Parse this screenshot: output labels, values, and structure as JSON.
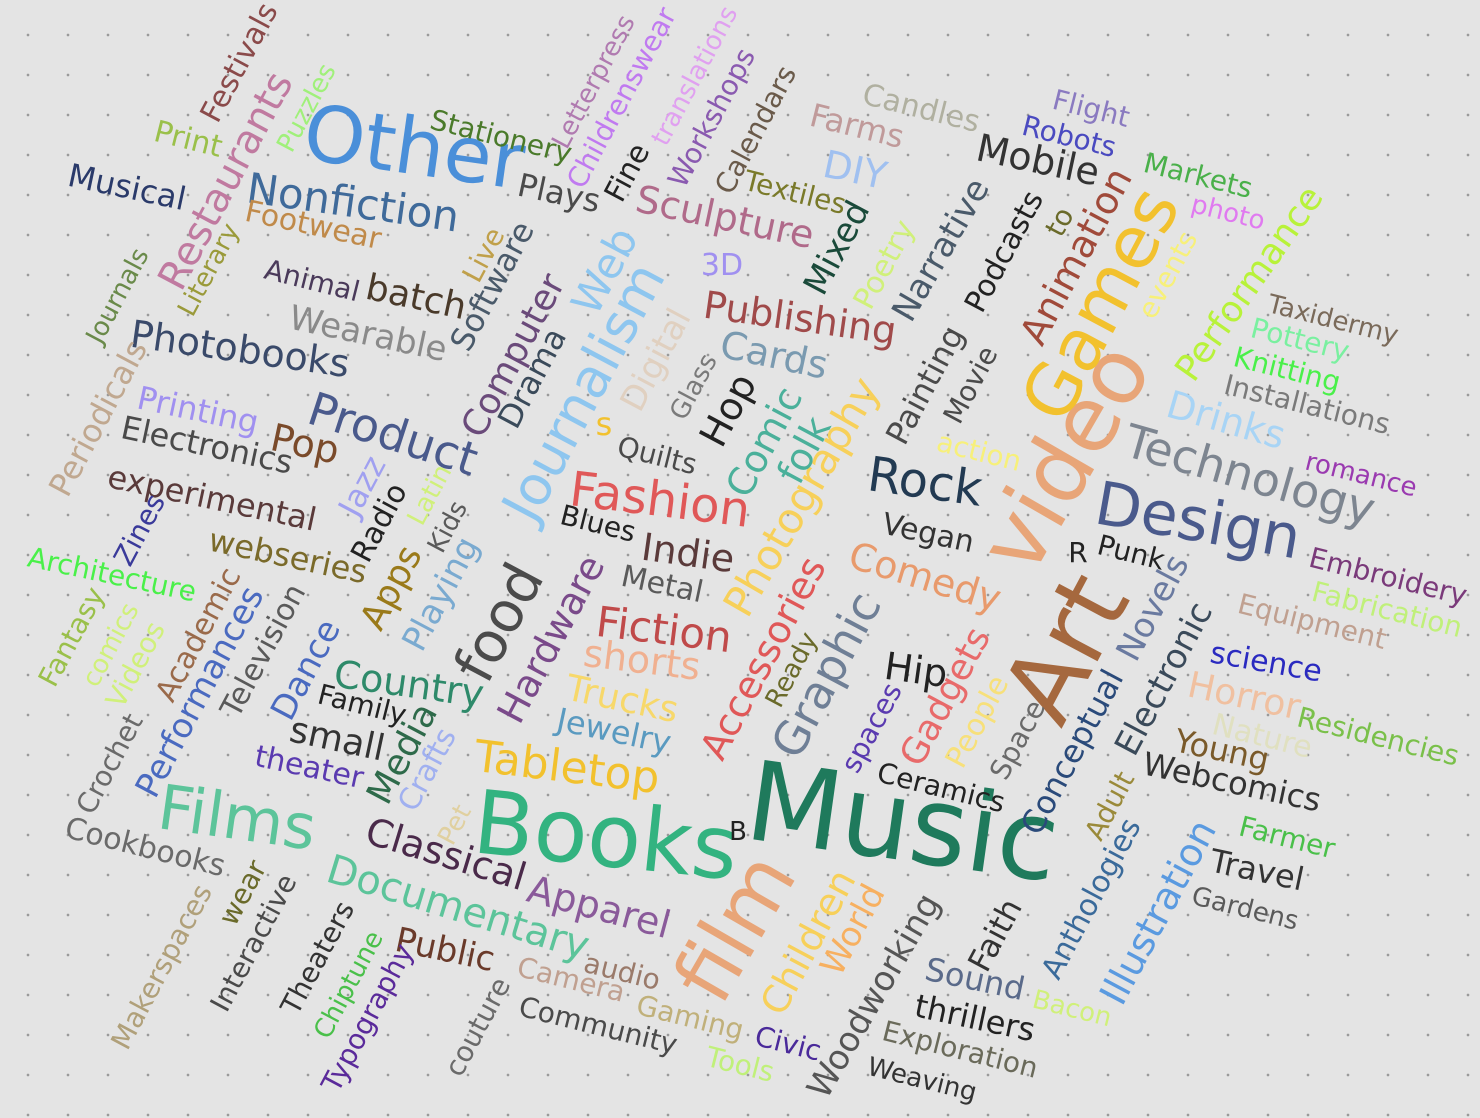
{
  "words": [
    {
      "text": "Music",
      "color": "#1f7a5c"
    },
    {
      "text": "Books",
      "color": "#33b380"
    },
    {
      "text": "Art",
      "color": "#a5683e"
    },
    {
      "text": "video",
      "color": "#e8a578"
    },
    {
      "text": "film",
      "color": "#e8a578"
    },
    {
      "text": "Other",
      "color": "#4a8fd9"
    },
    {
      "text": "Games",
      "color": "#f2c12e"
    },
    {
      "text": "Design",
      "color": "#4a5a8c"
    },
    {
      "text": "Films",
      "color": "#5cc49a"
    },
    {
      "text": "food",
      "color": "#4b4b4b"
    },
    {
      "text": "Journalism",
      "color": "#8ec6ef"
    },
    {
      "text": "Technology",
      "color": "#7d8590"
    },
    {
      "text": "Tabletop",
      "color": "#f2c12e"
    },
    {
      "text": "Fashion",
      "color": "#e05858"
    },
    {
      "text": "Photography",
      "color": "#f7d05a"
    },
    {
      "text": "Graphic",
      "color": "#6f7f96"
    },
    {
      "text": "Rock",
      "color": "#223a52"
    },
    {
      "text": "Product",
      "color": "#4a5a8c"
    },
    {
      "text": "Documentary",
      "color": "#5cc49a"
    },
    {
      "text": "Comedy",
      "color": "#e89a6c"
    },
    {
      "text": "Accessories",
      "color": "#e05858"
    },
    {
      "text": "Hardware",
      "color": "#7a4a8a"
    },
    {
      "text": "Fiction",
      "color": "#c04a4a"
    },
    {
      "text": "Country",
      "color": "#2e8a6a"
    },
    {
      "text": "Animation",
      "color": "#a04a3a"
    },
    {
      "text": "Photobooks",
      "color": "#3a4a6a"
    },
    {
      "text": "Nonfiction",
      "color": "#3f6a9a"
    },
    {
      "text": "Publishing",
      "color": "#a04a4a"
    },
    {
      "text": "Apparel",
      "color": "#8a5a9a"
    },
    {
      "text": "Restaurants",
      "color": "#c07aa0"
    },
    {
      "text": "Classical",
      "color": "#4a2a4a"
    },
    {
      "text": "Sculpture",
      "color": "#b06a8a"
    },
    {
      "text": "Drinks",
      "color": "#a8d4f5"
    },
    {
      "text": "Mobile",
      "color": "#333333"
    },
    {
      "text": "Children",
      "color": "#f7d05a"
    },
    {
      "text": "Performance",
      "color": "#b8f23a"
    },
    {
      "text": "Illustration",
      "color": "#5a9ae0"
    },
    {
      "text": "Web",
      "color": "#8ec6ef"
    },
    {
      "text": "Computer",
      "color": "#6a4a7a"
    },
    {
      "text": "Woodworking",
      "color": "#555555"
    },
    {
      "text": "Narrative",
      "color": "#4a5a6a"
    },
    {
      "text": "Novels",
      "color": "#6a7aa0"
    },
    {
      "text": "Electronic",
      "color": "#3a4a5a"
    },
    {
      "text": "Webcomics",
      "color": "#333333"
    },
    {
      "text": "Performances",
      "color": "#4a6ac0"
    },
    {
      "text": "Media",
      "color": "#2e6a4a"
    },
    {
      "text": "shorts",
      "color": "#f0b090"
    },
    {
      "text": "Comic",
      "color": "#4ab09a"
    },
    {
      "text": "Gadgets",
      "color": "#e86a6a"
    },
    {
      "text": "Conceptual",
      "color": "#2a4a7a"
    },
    {
      "text": "Anthologies",
      "color": "#3a6a9a"
    },
    {
      "text": "Painting",
      "color": "#4a4a4a"
    },
    {
      "text": "Sound",
      "color": "#5a6a8a"
    },
    {
      "text": "Public",
      "color": "#6a3a2a"
    },
    {
      "text": "Software",
      "color": "#4a5a6a"
    },
    {
      "text": "Drama",
      "color": "#3a4a5a"
    },
    {
      "text": "Equipment",
      "color": "#c0a090"
    },
    {
      "text": "webseries",
      "color": "#7a6a2a"
    },
    {
      "text": "experimental",
      "color": "#5a3a3a"
    },
    {
      "text": "Wearable",
      "color": "#8a8a8a"
    },
    {
      "text": "Hip",
      "color": "#222222"
    },
    {
      "text": "Indie",
      "color": "#5a3a3a"
    },
    {
      "text": "Hop",
      "color": "#222222"
    },
    {
      "text": "Horror",
      "color": "#f0c0a0"
    },
    {
      "text": "Trucks",
      "color": "#f7d86a"
    },
    {
      "text": "Jewelry",
      "color": "#5a9ac0"
    },
    {
      "text": "Periodicals",
      "color": "#c0a890"
    },
    {
      "text": "Digital",
      "color": "#e0d0c0"
    },
    {
      "text": "Playing",
      "color": "#7aaad0"
    },
    {
      "text": "Dance",
      "color": "#4a6ac0"
    },
    {
      "text": "small",
      "color": "#333333"
    },
    {
      "text": "World",
      "color": "#f7b060"
    },
    {
      "text": "Travel",
      "color": "#333333"
    },
    {
      "text": "Residencies",
      "color": "#7ac04a"
    },
    {
      "text": "Cookbooks",
      "color": "#6a6a6a"
    },
    {
      "text": "Musical",
      "color": "#2a3a6a"
    },
    {
      "text": "Electronics",
      "color": "#4a4a4a"
    },
    {
      "text": "Printing",
      "color": "#a090f0"
    },
    {
      "text": "Pop",
      "color": "#7a4a2a"
    },
    {
      "text": "folk",
      "color": "#4ab09a"
    },
    {
      "text": "Cards",
      "color": "#7a9ab0"
    },
    {
      "text": "Installations",
      "color": "#7a7a7a"
    },
    {
      "text": "Knitting",
      "color": "#4af04a"
    },
    {
      "text": "Taxidermy",
      "color": "#7a6a5a"
    },
    {
      "text": "Pottery",
      "color": "#7af0a0"
    },
    {
      "text": "Embroidery",
      "color": "#7a3a7a"
    },
    {
      "text": "Fabrication",
      "color": "#c0f07a"
    },
    {
      "text": "science",
      "color": "#2a2ac0"
    },
    {
      "text": "Young",
      "color": "#7a5a2a"
    },
    {
      "text": "Nature",
      "color": "#e0e0c0"
    },
    {
      "text": "Farmer",
      "color": "#4ac04a"
    },
    {
      "text": "Gardens",
      "color": "#5a5a5a"
    },
    {
      "text": "Adult",
      "color": "#9a8a3a"
    },
    {
      "text": "Faith",
      "color": "#333333"
    },
    {
      "text": "thrillers",
      "color": "#222222"
    },
    {
      "text": "Exploration",
      "color": "#6a6a5a"
    },
    {
      "text": "Weaving",
      "color": "#333333"
    },
    {
      "text": "Bacon",
      "color": "#d0f07a"
    },
    {
      "text": "Civic",
      "color": "#4a2a9a"
    },
    {
      "text": "Tools",
      "color": "#c0f07a"
    },
    {
      "text": "Gaming",
      "color": "#c0b07a"
    },
    {
      "text": "Community",
      "color": "#4a4a4a"
    },
    {
      "text": "audio",
      "color": "#9a7a6a"
    },
    {
      "text": "Camera",
      "color": "#c0a090"
    },
    {
      "text": "couture",
      "color": "#6a6a6a"
    },
    {
      "text": "Typography",
      "color": "#5a2a9a"
    },
    {
      "text": "Chiptune",
      "color": "#4ac04a"
    },
    {
      "text": "Theaters",
      "color": "#333333"
    },
    {
      "text": "Interactive",
      "color": "#4a4a4a"
    },
    {
      "text": "Makerspaces",
      "color": "#b0a07a"
    },
    {
      "text": "wear",
      "color": "#6a6a2a"
    },
    {
      "text": "Pet",
      "color": "#e0d0a0"
    },
    {
      "text": "Crafts",
      "color": "#a0b0f0"
    },
    {
      "text": "theater",
      "color": "#5a3ab0"
    },
    {
      "text": "Family",
      "color": "#222222"
    },
    {
      "text": "Television",
      "color": "#5a5a5a"
    },
    {
      "text": "Academic",
      "color": "#9a6a4a"
    },
    {
      "text": "Crochet",
      "color": "#6a6a6a"
    },
    {
      "text": "Videos",
      "color": "#d0f07a"
    },
    {
      "text": "comics",
      "color": "#d0f07a"
    },
    {
      "text": "Fantasy",
      "color": "#9ac04a"
    },
    {
      "text": "Architecture",
      "color": "#4af04a"
    },
    {
      "text": "Zines",
      "color": "#3a3a9a"
    },
    {
      "text": "Jazz",
      "color": "#a0a0f0"
    },
    {
      "text": "Radio",
      "color": "#222222"
    },
    {
      "text": "Latin",
      "color": "#d0f07a"
    },
    {
      "text": "Kids",
      "color": "#5a5a5a"
    },
    {
      "text": "Apps",
      "color": "#9a7a1a"
    },
    {
      "text": "Blues",
      "color": "#222222"
    },
    {
      "text": "Metal",
      "color": "#5a5a5a"
    },
    {
      "text": "Quilts",
      "color": "#4a4a4a"
    },
    {
      "text": "Glass",
      "color": "#7a7a7a"
    },
    {
      "text": "s",
      "color": "#f2c12e"
    },
    {
      "text": "Ready",
      "color": "#6a6a2a"
    },
    {
      "text": "spaces",
      "color": "#5a3ab0"
    },
    {
      "text": "Ceramics",
      "color": "#222222"
    },
    {
      "text": "B",
      "color": "#222222"
    },
    {
      "text": "People",
      "color": "#f7e07a"
    },
    {
      "text": "Space",
      "color": "#6a6a6a"
    },
    {
      "text": "Vegan",
      "color": "#333333"
    },
    {
      "text": "R",
      "color": "#222222"
    },
    {
      "text": "Punk",
      "color": "#222222"
    },
    {
      "text": "action",
      "color": "#f7f07a"
    },
    {
      "text": "Movie",
      "color": "#4a4a4a"
    },
    {
      "text": "romance",
      "color": "#9a3ab0"
    },
    {
      "text": "Podcasts",
      "color": "#222222"
    },
    {
      "text": "to",
      "color": "#6a6a2a"
    },
    {
      "text": "events",
      "color": "#f7f07a"
    },
    {
      "text": "photo",
      "color": "#e07af0"
    },
    {
      "text": "Markets",
      "color": "#4ab04a"
    },
    {
      "text": "Robots",
      "color": "#4a4ac0"
    },
    {
      "text": "Flight",
      "color": "#8a7ac0"
    },
    {
      "text": "Candles",
      "color": "#b0b0a0"
    },
    {
      "text": "Farms",
      "color": "#c09a9a"
    },
    {
      "text": "DIY",
      "color": "#a0c0f0"
    },
    {
      "text": "Textiles",
      "color": "#7a7a2a"
    },
    {
      "text": "Calendars",
      "color": "#6a5a4a"
    },
    {
      "text": "Workshops",
      "color": "#8a5ab0"
    },
    {
      "text": "translations",
      "color": "#e0a0f0"
    },
    {
      "text": "Childrenswear",
      "color": "#c07af0"
    },
    {
      "text": "Letterpress",
      "color": "#b07ab0"
    },
    {
      "text": "Fine",
      "color": "#222222"
    },
    {
      "text": "Stationery",
      "color": "#4a7a2a"
    },
    {
      "text": "Plays",
      "color": "#4a4a4a"
    },
    {
      "text": "Mixed",
      "color": "#1a4a3a"
    },
    {
      "text": "Poetry",
      "color": "#d0f07a"
    },
    {
      "text": "3D",
      "color": "#a090f0"
    },
    {
      "text": "Festivals",
      "color": "#8a4a4a"
    },
    {
      "text": "Puzzles",
      "color": "#a0f07a"
    },
    {
      "text": "Print",
      "color": "#9ac04a"
    },
    {
      "text": "Footwear",
      "color": "#c08a4a"
    },
    {
      "text": "Literary",
      "color": "#9a9a3a"
    },
    {
      "text": "Journals",
      "color": "#6a8a4a"
    },
    {
      "text": "Animal",
      "color": "#4a3a5a"
    },
    {
      "text": "batch",
      "color": "#4a3a2a"
    },
    {
      "text": "Live",
      "color": "#c0a04a"
    }
  ]
}
